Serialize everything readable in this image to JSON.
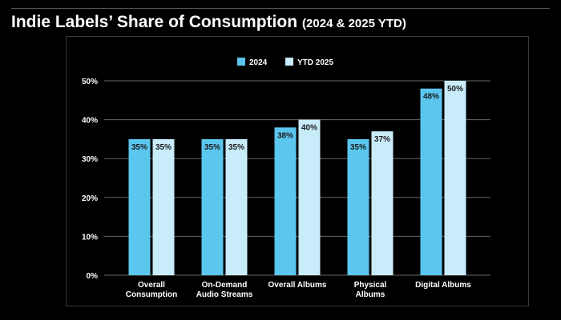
{
  "header": {
    "title": "Indie Labels’ Share of Consumption",
    "subtitle": "(2024 & 2025 YTD)"
  },
  "colors": {
    "background": "#000000",
    "series_2024": "#5bc6ee",
    "series_ytd2025": "#c9ecfb",
    "grid": "#666666",
    "text": "#ffffff"
  },
  "chart_data": {
    "type": "bar",
    "title": "Indie Labels’ Share of Consumption (2024 & 2025 YTD)",
    "xlabel": "",
    "ylabel": "",
    "ylim": [
      0,
      50
    ],
    "yticks": [
      0,
      10,
      20,
      30,
      40,
      50
    ],
    "ytick_labels": [
      "0%",
      "10%",
      "20%",
      "30%",
      "40%",
      "50%"
    ],
    "grid": true,
    "legend_position": "top-center",
    "categories": [
      [
        "Overall",
        "Consumption"
      ],
      [
        "On-Demand",
        "Audio Streams"
      ],
      [
        "Overall Albums"
      ],
      [
        "Physical",
        "Albums"
      ],
      [
        "Digital Albums"
      ]
    ],
    "series": [
      {
        "name": "2024",
        "values": [
          35,
          35,
          38,
          35,
          48
        ],
        "labels": [
          "35%",
          "35%",
          "38%",
          "35%",
          "48%"
        ]
      },
      {
        "name": "YTD 2025",
        "values": [
          35,
          35,
          40,
          37,
          50
        ],
        "labels": [
          "35%",
          "35%",
          "40%",
          "37%",
          "50%"
        ]
      }
    ]
  }
}
